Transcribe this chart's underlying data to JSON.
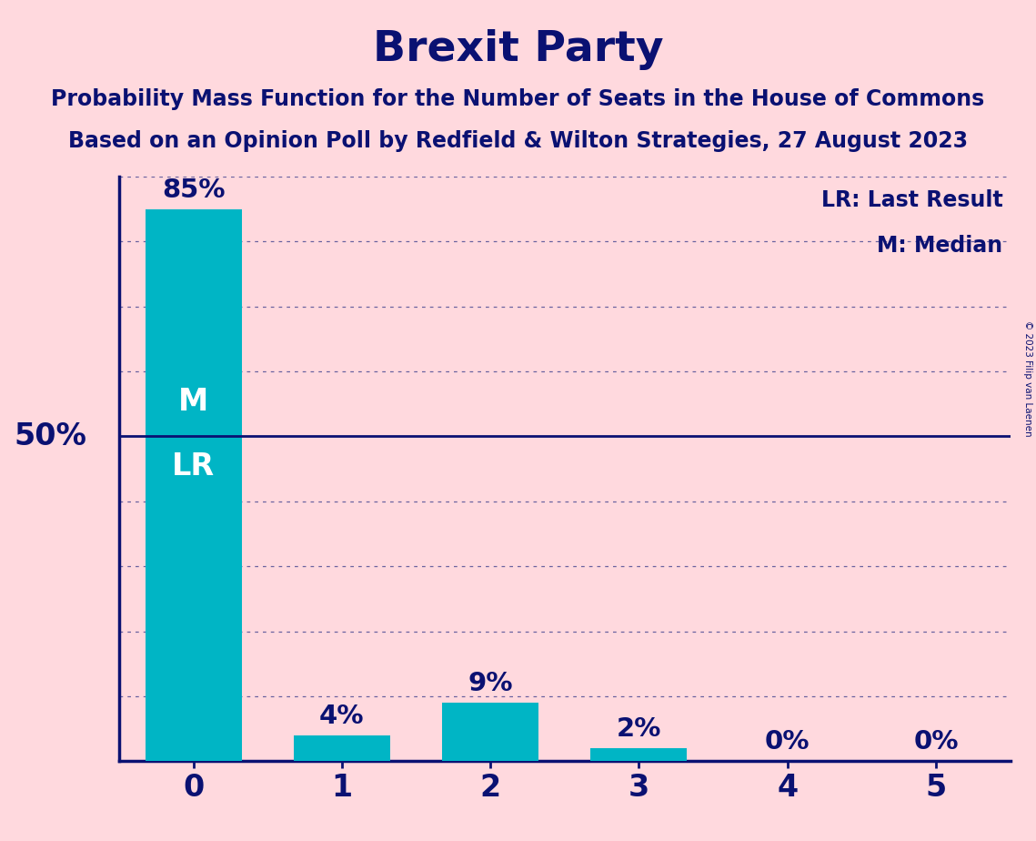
{
  "title": "Brexit Party",
  "subtitle1": "Probability Mass Function for the Number of Seats in the House of Commons",
  "subtitle2": "Based on an Opinion Poll by Redfield & Wilton Strategies, 27 August 2023",
  "copyright": "© 2023 Filip van Laenen",
  "categories": [
    0,
    1,
    2,
    3,
    4,
    5
  ],
  "values": [
    85,
    4,
    9,
    2,
    0,
    0
  ],
  "bar_color": "#00B5C5",
  "background_color": "#FFD9DE",
  "title_color": "#0A1172",
  "bar_label_color": "#0A1172",
  "bar_label_color_inside": "#FFFFFF",
  "fifty_pct_line_color": "#0A1172",
  "grid_color": "#1A237E",
  "legend_lr": "LR: Last Result",
  "legend_m": "M: Median",
  "ylabel_50": "50%",
  "axis_color": "#0A1172",
  "ylim_max": 90,
  "dotted_lines": [
    10,
    20,
    30,
    40,
    60,
    70,
    80,
    90
  ],
  "solid_line": 50,
  "m_label": "M",
  "lr_label": "LR"
}
